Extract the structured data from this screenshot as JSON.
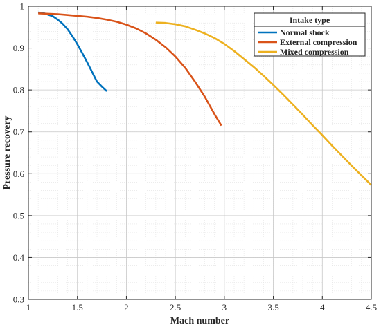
{
  "chart_data": {
    "type": "line",
    "title": "",
    "xlabel": "Mach number",
    "ylabel": "Pressure recovery",
    "xlim": [
      1,
      4.5
    ],
    "ylim": [
      0.3,
      1
    ],
    "xticks": [
      1,
      1.5,
      2,
      2.5,
      3,
      3.5,
      4,
      4.5
    ],
    "xtick_labels": [
      "1",
      "1.5",
      "2",
      "2.5",
      "3",
      "3.5",
      "4",
      "4.5"
    ],
    "yticks": [
      0.3,
      0.4,
      0.5,
      0.6,
      0.7,
      0.8,
      0.9,
      1
    ],
    "ytick_labels": [
      "0.3",
      "0.4",
      "0.5",
      "0.6",
      "0.7",
      "0.8",
      "0.9",
      "1"
    ],
    "grid": true,
    "minor_grid": true,
    "legend": {
      "title": "Intake type",
      "position": "top-right"
    },
    "series": [
      {
        "name": "Normal shock",
        "color": "#0072BD",
        "x": [
          1.1,
          1.15,
          1.2,
          1.25,
          1.3,
          1.35,
          1.4,
          1.45,
          1.5,
          1.55,
          1.6,
          1.65,
          1.7,
          1.75,
          1.8
        ],
        "y": [
          0.985,
          0.984,
          0.98,
          0.976,
          0.968,
          0.958,
          0.945,
          0.928,
          0.909,
          0.888,
          0.866,
          0.843,
          0.82,
          0.808,
          0.797
        ]
      },
      {
        "name": "External compression",
        "color": "#D95319",
        "x": [
          1.1,
          1.2,
          1.3,
          1.4,
          1.5,
          1.6,
          1.7,
          1.8,
          1.9,
          2.0,
          2.1,
          2.2,
          2.3,
          2.4,
          2.5,
          2.6,
          2.7,
          2.8,
          2.9,
          2.97
        ],
        "y": [
          0.983,
          0.982,
          0.981,
          0.979,
          0.977,
          0.975,
          0.972,
          0.968,
          0.963,
          0.956,
          0.947,
          0.935,
          0.92,
          0.902,
          0.88,
          0.853,
          0.82,
          0.784,
          0.742,
          0.715
        ]
      },
      {
        "name": "Mixed compression",
        "color": "#EDB120",
        "x": [
          2.3,
          2.4,
          2.5,
          2.6,
          2.7,
          2.8,
          2.9,
          3.0,
          3.1,
          3.2,
          3.3,
          3.4,
          3.5,
          3.6,
          3.7,
          3.8,
          3.9,
          4.0,
          4.1,
          4.2,
          4.3,
          4.4,
          4.5
        ],
        "y": [
          0.961,
          0.96,
          0.957,
          0.952,
          0.944,
          0.935,
          0.924,
          0.91,
          0.893,
          0.874,
          0.855,
          0.834,
          0.812,
          0.789,
          0.765,
          0.741,
          0.716,
          0.692,
          0.667,
          0.643,
          0.619,
          0.596,
          0.573
        ]
      }
    ]
  }
}
